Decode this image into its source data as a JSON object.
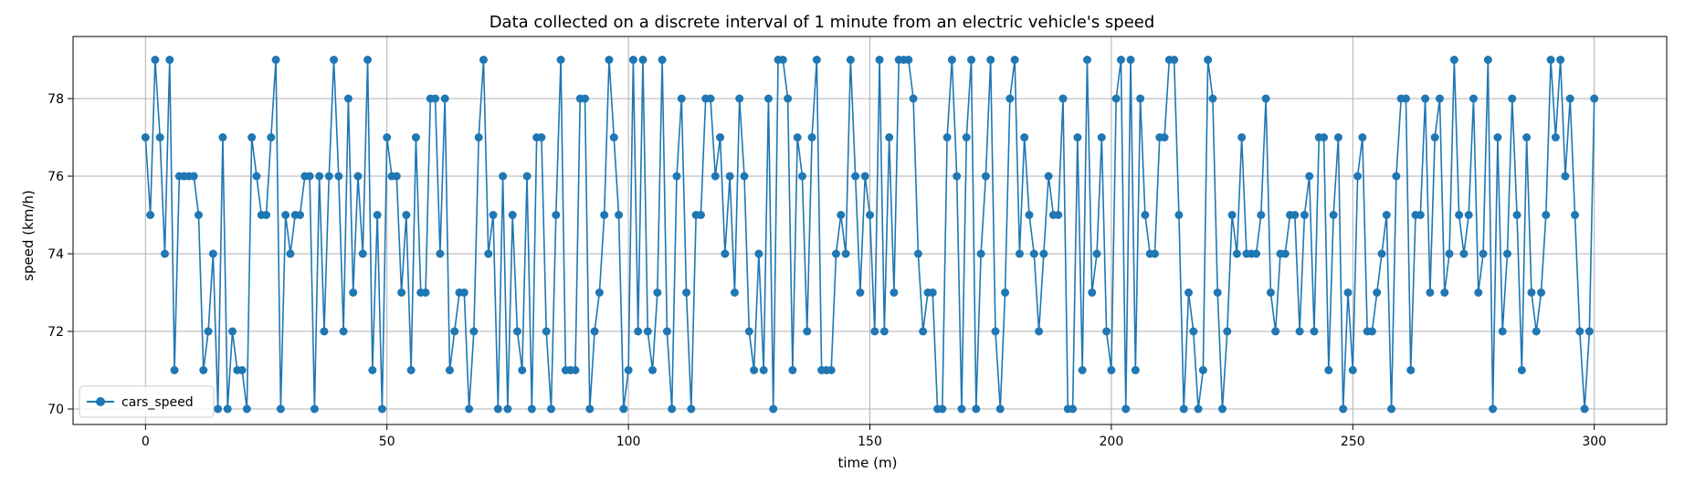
{
  "chart_data": {
    "type": "line",
    "title": "Data collected on a discrete interval of 1 minute from an electric vehicle's speed",
    "xlabel": "time (m)",
    "ylabel": "speed (km/h)",
    "xlim": [
      -15,
      315
    ],
    "ylim": [
      69.6,
      79.6
    ],
    "xticks": [
      0,
      50,
      100,
      150,
      200,
      250,
      300
    ],
    "yticks": [
      70,
      72,
      74,
      76,
      78
    ],
    "grid": true,
    "legend_position": "lower-left",
    "marker": "circle",
    "color": "#1f77b4",
    "series": [
      {
        "name": "cars_speed",
        "x_start": 0,
        "x_step": 1,
        "values": [
          77,
          75,
          79,
          77,
          74,
          79,
          71,
          76,
          76,
          76,
          76,
          75,
          71,
          72,
          74,
          70,
          77,
          70,
          72,
          71,
          71,
          70,
          77,
          76,
          75,
          75,
          77,
          79,
          70,
          75,
          74,
          75,
          75,
          76,
          76,
          70,
          76,
          72,
          76,
          79,
          76,
          72,
          78,
          73,
          76,
          74,
          79,
          71,
          75,
          70,
          77,
          76,
          76,
          73,
          75,
          71,
          77,
          73,
          73,
          78,
          78,
          74,
          78,
          71,
          72,
          73,
          73,
          70,
          72,
          77,
          79,
          74,
          75,
          70,
          76,
          70,
          75,
          72,
          71,
          76,
          70,
          77,
          77,
          72,
          70,
          75,
          79,
          71,
          71,
          71,
          78,
          78,
          70,
          72,
          73,
          75,
          79,
          77,
          75,
          70,
          71,
          79,
          72,
          79,
          72,
          71,
          73,
          79,
          72,
          70,
          76,
          78,
          73,
          70,
          75,
          75,
          78,
          78,
          76,
          77,
          74,
          76,
          73,
          78,
          76,
          72,
          71,
          74,
          71,
          78,
          70,
          79,
          79,
          78,
          71,
          77,
          76,
          72,
          77,
          79,
          71,
          71,
          71,
          74,
          75,
          74,
          79,
          76,
          73,
          76,
          75,
          72,
          79,
          72,
          77,
          73,
          79,
          79,
          79,
          78,
          74,
          72,
          73,
          73,
          70,
          70,
          77,
          79,
          76,
          70,
          77,
          79,
          70,
          74,
          76,
          79,
          72,
          70,
          73,
          78,
          79,
          74,
          77,
          75,
          74,
          72,
          74,
          76,
          75,
          75,
          78,
          70,
          70,
          77,
          71,
          79,
          73,
          74,
          77,
          72,
          71,
          78,
          79,
          70,
          79,
          71,
          78,
          75,
          74,
          74,
          77,
          77,
          79,
          79,
          75,
          70,
          73,
          72,
          70,
          71,
          79,
          78,
          73,
          70,
          72,
          75,
          74,
          77,
          74,
          74,
          74,
          75,
          78,
          73,
          72,
          74,
          74,
          75,
          75,
          72,
          75,
          76,
          72,
          77,
          77,
          71,
          75,
          77,
          70,
          73,
          71,
          76,
          77,
          72,
          72,
          73,
          74,
          75,
          70,
          76,
          78,
          78,
          71,
          75,
          75,
          78,
          73,
          77,
          78,
          73,
          74,
          79,
          75,
          74,
          75,
          78,
          73,
          74,
          79,
          70,
          77,
          72,
          74,
          78,
          75,
          71,
          77,
          73,
          72,
          73,
          75,
          79,
          77,
          79,
          76,
          78,
          75,
          72,
          70,
          72,
          78
        ]
      }
    ]
  }
}
